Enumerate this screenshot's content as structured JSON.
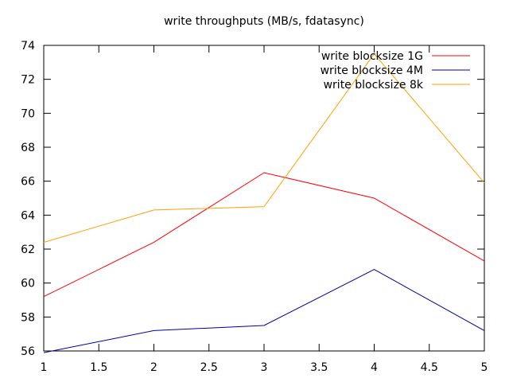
{
  "chart_data": {
    "type": "line",
    "title": "write throughputs (MB/s, fdatasync)",
    "xlabel": "",
    "ylabel": "",
    "x": [
      1,
      2,
      3,
      4,
      5
    ],
    "xlim": [
      1,
      5
    ],
    "ylim": [
      56,
      74
    ],
    "xticks": [
      "1",
      "1.5",
      "2",
      "2.5",
      "3",
      "3.5",
      "4",
      "4.5",
      "5"
    ],
    "yticks": [
      "56",
      "58",
      "60",
      "62",
      "64",
      "66",
      "68",
      "70",
      "72",
      "74"
    ],
    "grid": false,
    "legend_position": "top-right",
    "series": [
      {
        "name": "write blocksize 1G",
        "color": "#ff0000",
        "values": [
          59.2,
          62.4,
          66.5,
          65.0,
          61.3
        ]
      },
      {
        "name": "write blocksize 4M",
        "color": "#0000a0",
        "values": [
          55.9,
          57.2,
          57.5,
          60.8,
          57.2
        ]
      },
      {
        "name": "write blocksize 8k",
        "color": "#ffa000",
        "values": [
          62.4,
          64.3,
          64.5,
          73.5,
          65.9
        ]
      }
    ]
  }
}
